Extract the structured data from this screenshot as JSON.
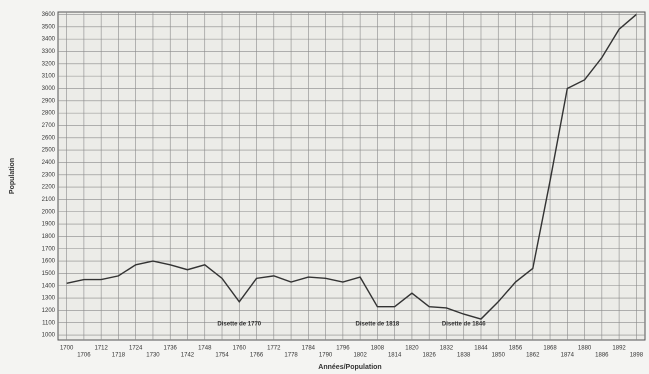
{
  "chart_data": {
    "type": "line",
    "x_label": "Années/Population",
    "y_label": "Population",
    "x": [
      1700,
      1706,
      1712,
      1718,
      1724,
      1730,
      1736,
      1742,
      1748,
      1754,
      1760,
      1766,
      1772,
      1778,
      1784,
      1790,
      1796,
      1802,
      1808,
      1814,
      1820,
      1826,
      1832,
      1838,
      1844,
      1850,
      1856,
      1862,
      1868,
      1874,
      1880,
      1886,
      1892,
      1898
    ],
    "series": [
      {
        "name": "Population",
        "color": "#333333",
        "values": [
          1420,
          1450,
          1450,
          1480,
          1570,
          1600,
          1570,
          1530,
          1570,
          1460,
          1270,
          1460,
          1480,
          1430,
          1470,
          1460,
          1430,
          1470,
          1230,
          1230,
          1340,
          1230,
          1220,
          1170,
          1130,
          1270,
          1430,
          1540,
          2250,
          3000,
          3070,
          3250,
          3480,
          3600
        ]
      }
    ],
    "xlim": [
      1697,
      1901
    ],
    "xticks": [
      1700,
      1706,
      1712,
      1718,
      1724,
      1730,
      1736,
      1742,
      1748,
      1754,
      1760,
      1766,
      1772,
      1778,
      1784,
      1790,
      1796,
      1802,
      1808,
      1814,
      1820,
      1826,
      1832,
      1838,
      1844,
      1850,
      1856,
      1862,
      1868,
      1874,
      1880,
      1886,
      1892,
      1898
    ],
    "ylim": [
      960,
      3620
    ],
    "yticks": [
      1000,
      1100,
      1200,
      1300,
      1400,
      1500,
      1600,
      1700,
      1800,
      1900,
      2000,
      2100,
      2200,
      2300,
      2400,
      2500,
      2600,
      2700,
      2800,
      2900,
      3000,
      3100,
      3200,
      3300,
      3400,
      3500,
      3600
    ],
    "grid": true,
    "annotations": [
      "Disette de 1770",
      "Disette de 1818",
      "Disette de 1846"
    ]
  }
}
